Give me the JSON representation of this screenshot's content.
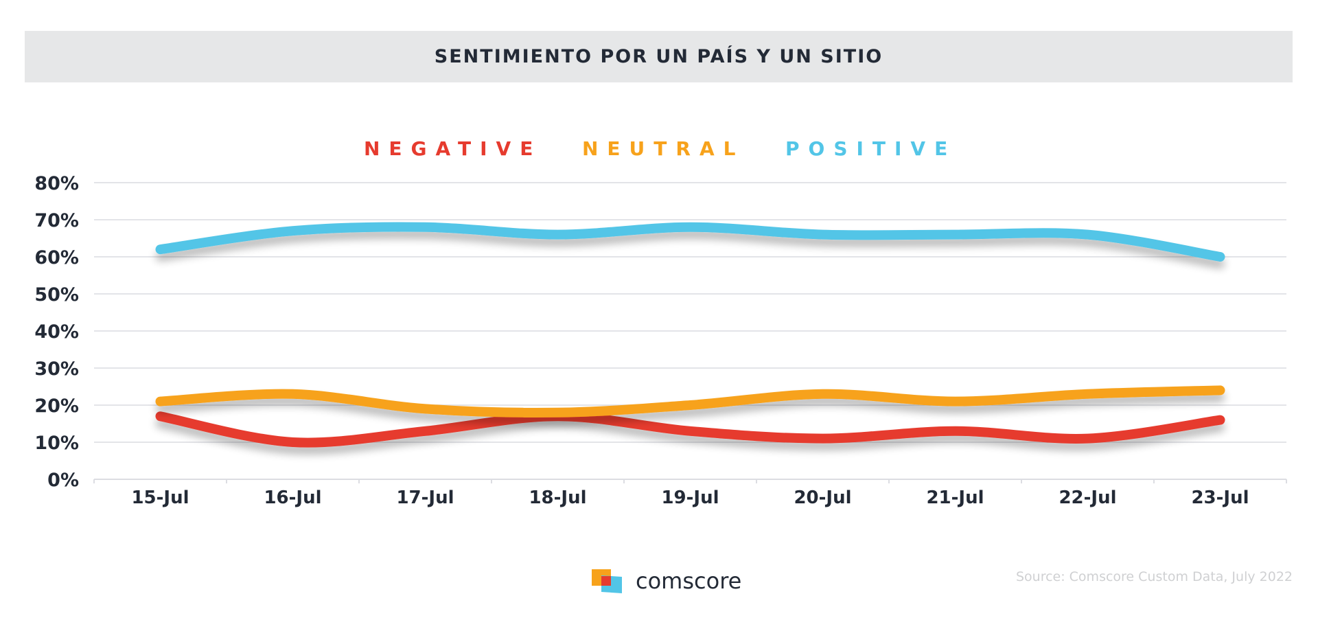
{
  "header": {
    "title": "SENTIMIENTO POR UN PAÍS Y UN SITIO"
  },
  "footer": {
    "logo_text": "comscore",
    "source": "Source: Comscore Custom Data, July 2022"
  },
  "chart_data": {
    "type": "line",
    "title": "SENTIMIENTO POR UN PAÍS Y UN SITIO",
    "xlabel": "",
    "ylabel": "",
    "categories": [
      "15-Jul",
      "16-Jul",
      "17-Jul",
      "18-Jul",
      "19-Jul",
      "20-Jul",
      "21-Jul",
      "22-Jul",
      "23-Jul"
    ],
    "yticks": [
      "0%",
      "10%",
      "20%",
      "30%",
      "40%",
      "50%",
      "60%",
      "70%",
      "80%"
    ],
    "ylim": [
      0,
      80
    ],
    "grid": true,
    "legend_position": "top-center",
    "series": [
      {
        "name": "NEGATIVE",
        "color": "#e63b2e",
        "values": [
          17,
          10,
          13,
          17,
          13,
          11,
          13,
          11,
          16
        ]
      },
      {
        "name": "NEUTRAL",
        "color": "#f7a21b",
        "values": [
          21,
          23,
          19,
          18,
          20,
          23,
          21,
          23,
          24
        ]
      },
      {
        "name": "POSITIVE",
        "color": "#52c5e7",
        "values": [
          62,
          67,
          68,
          66,
          68,
          66,
          66,
          66,
          60
        ]
      }
    ]
  }
}
